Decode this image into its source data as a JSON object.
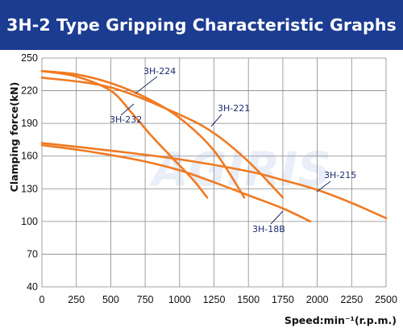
{
  "header": {
    "title": "3H-2 Type Gripping Characteristic Graphs"
  },
  "colors": {
    "header_bg": "#1c3c92",
    "curve": "#f07a22",
    "grid": "#888888",
    "label": "#1c2a6e",
    "leader": "#1c2a6e"
  },
  "chart_data": {
    "type": "line",
    "xlabel": "Speed:min⁻¹(r.p.m.)",
    "ylabel": "Clamping force(kN)",
    "xlim": [
      0,
      2500
    ],
    "ylim": [
      40,
      250
    ],
    "x_ticks": [
      "0",
      "250",
      "500",
      "750",
      "1000",
      "1250",
      "1500",
      "1750",
      "2000",
      "2250",
      "2500"
    ],
    "y_ticks": [
      "40",
      "70",
      "100",
      "130",
      "160",
      "190",
      "220",
      "250"
    ],
    "grid": true,
    "series": [
      {
        "name": "3H-224",
        "x": [
          0,
          250,
          500,
          750,
          1000,
          1250,
          1470
        ],
        "y": [
          238,
          235,
          227,
          214,
          195,
          165,
          122
        ]
      },
      {
        "name": "3H-232",
        "x": [
          0,
          250,
          500,
          650,
          800,
          950,
          1100,
          1200
        ],
        "y": [
          238,
          233,
          220,
          200,
          178,
          158,
          138,
          122
        ]
      },
      {
        "name": "3H-221",
        "x": [
          0,
          500,
          1000,
          1250,
          1500,
          1750
        ],
        "y": [
          232,
          223,
          198,
          181,
          155,
          122
        ]
      },
      {
        "name": "3H-215",
        "x": [
          0,
          500,
          1000,
          1500,
          1750,
          2000,
          2250,
          2500
        ],
        "y": [
          172,
          165,
          157,
          146,
          138,
          129,
          117,
          103
        ]
      },
      {
        "name": "3H-18B",
        "x": [
          0,
          250,
          500,
          750,
          1000,
          1250,
          1500,
          1750,
          1950
        ],
        "y": [
          170,
          166,
          161,
          155,
          147,
          136,
          124,
          112,
          100
        ]
      }
    ],
    "annotations": [
      {
        "text": "3H-224",
        "series": "3H-224"
      },
      {
        "text": "3H-232",
        "series": "3H-232"
      },
      {
        "text": "3H-221",
        "series": "3H-221"
      },
      {
        "text": "3H-215",
        "series": "3H-215"
      },
      {
        "text": "3H-18B",
        "series": "3H-18B"
      }
    ],
    "watermark": "AGIRIS"
  }
}
